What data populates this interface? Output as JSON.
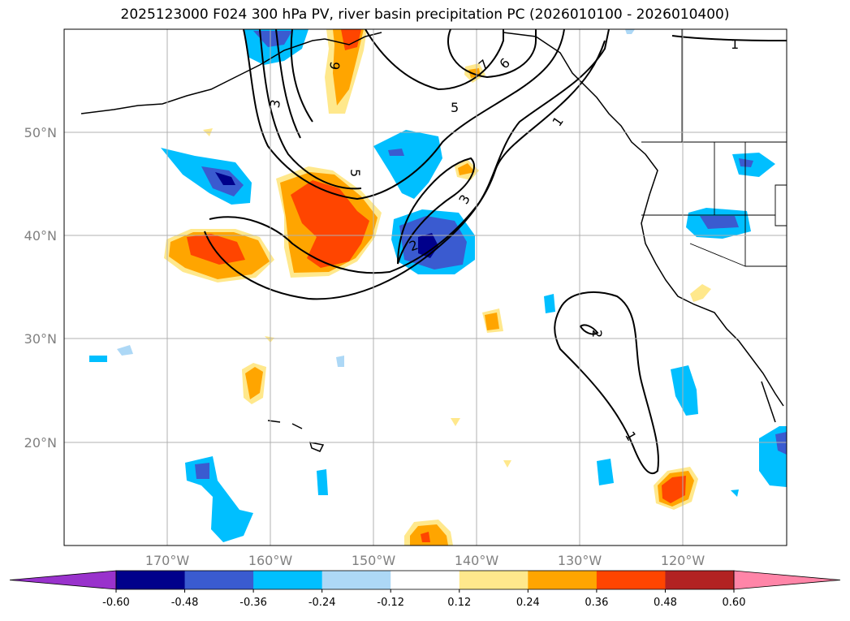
{
  "title": "2025123000 F024 300 hPa PV, river basin precipitation PC (2026010100 - 2026010400)",
  "map": {
    "lon_range": [
      -180,
      -110
    ],
    "lat_range": [
      10,
      60
    ],
    "lon_ticks": [
      {
        "lon": -170,
        "label": "170°W"
      },
      {
        "lon": -160,
        "label": "160°W"
      },
      {
        "lon": -150,
        "label": "150°W"
      },
      {
        "lon": -140,
        "label": "140°W"
      },
      {
        "lon": -130,
        "label": "130°W"
      },
      {
        "lon": -120,
        "label": "120°W"
      }
    ],
    "lat_ticks": [
      {
        "lat": 20,
        "label": "20°N"
      },
      {
        "lat": 30,
        "label": "30°N"
      },
      {
        "lat": 40,
        "label": "40°N"
      },
      {
        "lat": 50,
        "label": "50°N"
      }
    ],
    "grid": true,
    "contour_labels": [
      "1",
      "2",
      "3",
      "5",
      "6",
      "7"
    ]
  },
  "colorbar": {
    "levels": [
      "-0.60",
      "-0.48",
      "-0.36",
      "-0.24",
      "-0.12",
      "0.12",
      "0.24",
      "0.36",
      "0.48",
      "0.60"
    ],
    "colors": [
      "#9932cc",
      "#00008b",
      "#3a5bd0",
      "#00bfff",
      "#add8f6",
      "#ffffff",
      "#ffe88c",
      "#ffa500",
      "#ff4500",
      "#b22222",
      "#ff85a8"
    ],
    "extend": "both"
  }
}
